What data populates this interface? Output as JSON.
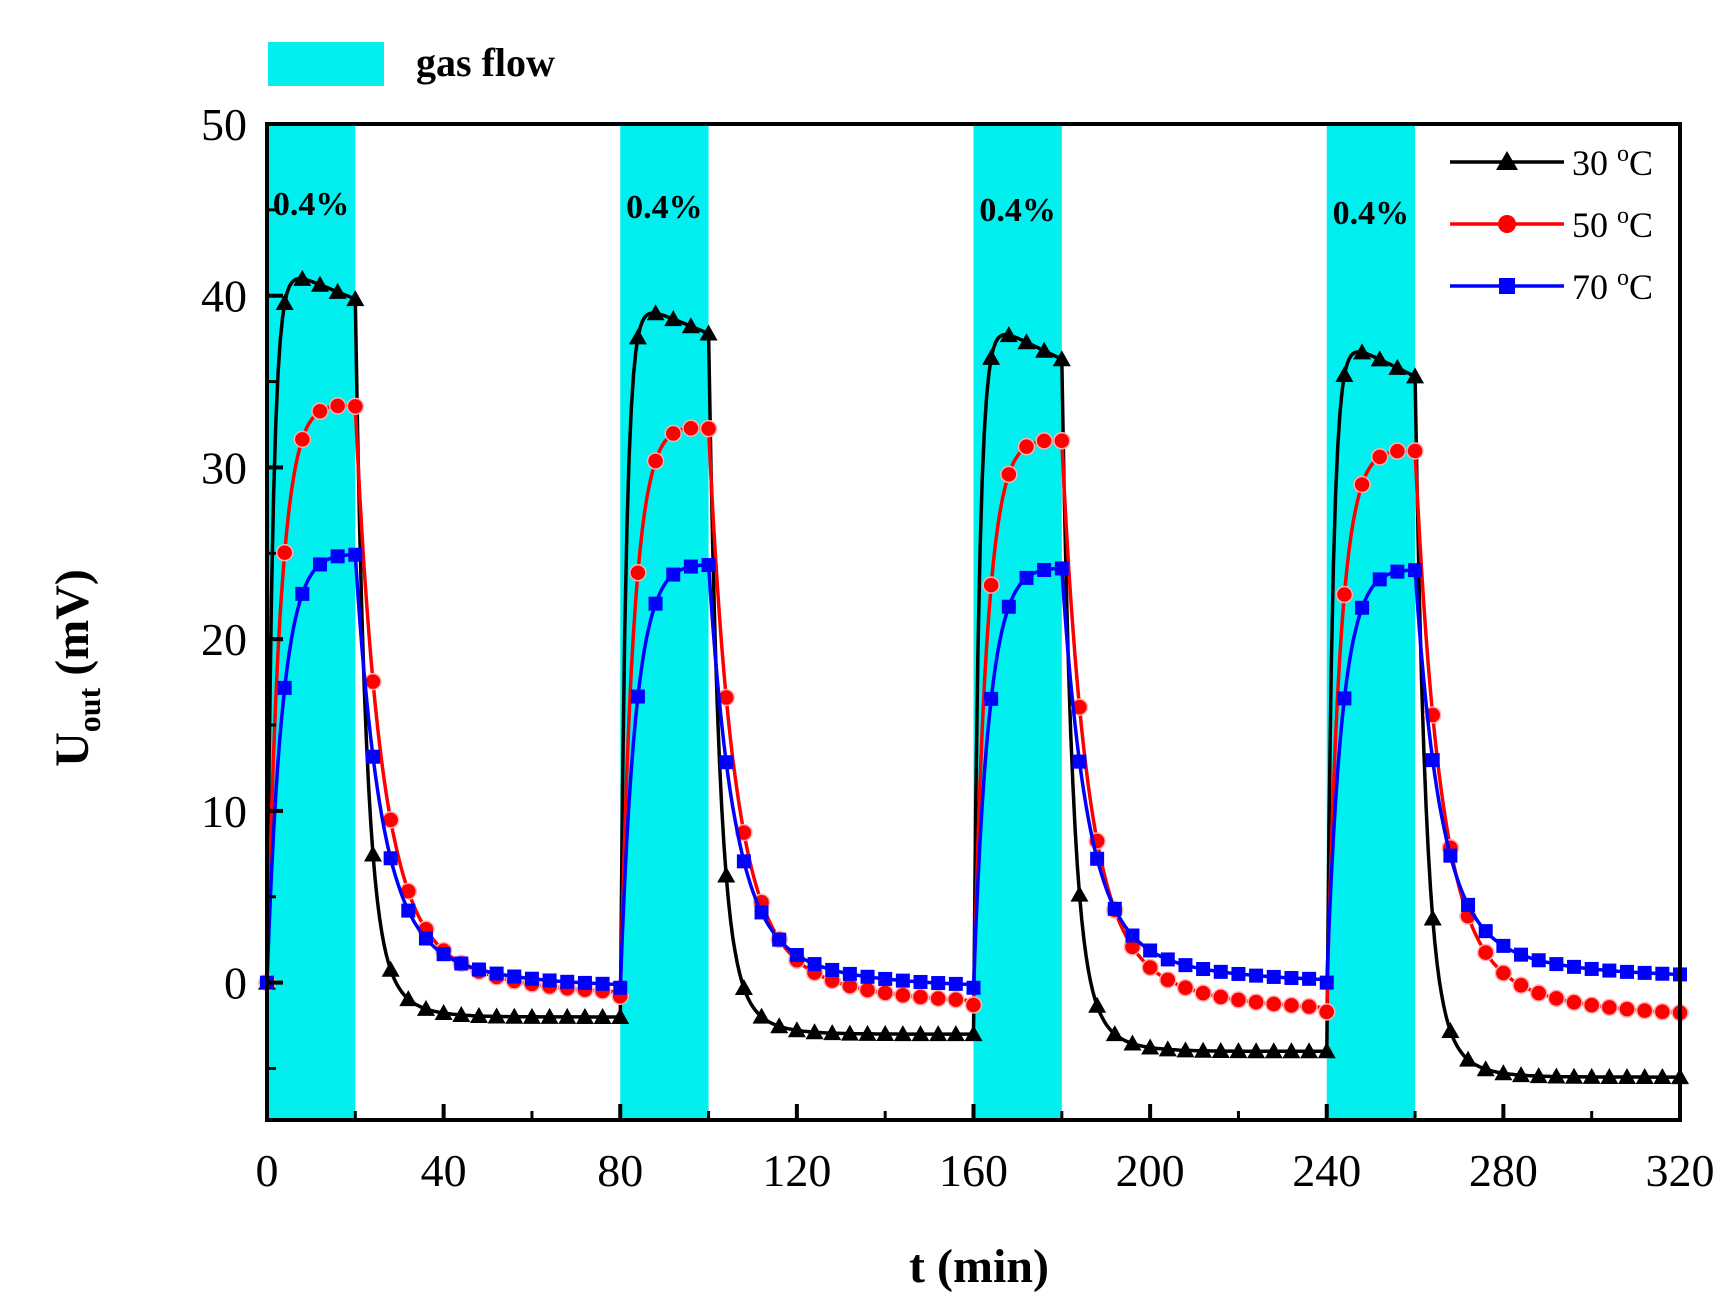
{
  "chart_data": {
    "type": "line",
    "title": "",
    "xlabel": "t (min)",
    "ylabel_main": "U",
    "ylabel_sub": "out",
    "ylabel_unit": " (mV)",
    "xlim": [
      0,
      320
    ],
    "ylim": [
      -8,
      50
    ],
    "xticks": [
      0,
      40,
      80,
      120,
      160,
      200,
      240,
      280,
      320
    ],
    "yticks": [
      0,
      10,
      20,
      30,
      40,
      50
    ],
    "gas_flow_legend": {
      "label": "gas flow",
      "color": "#00f0f0"
    },
    "gas_flow_periods": [
      {
        "start": 0,
        "end": 20,
        "label": "0.4%"
      },
      {
        "start": 80,
        "end": 100,
        "label": "0.4%"
      },
      {
        "start": 160,
        "end": 180,
        "label": "0.4%"
      },
      {
        "start": 240,
        "end": 260,
        "label": "0.4%"
      }
    ],
    "series": [
      {
        "name": "30 °C",
        "legend_num": "30 ",
        "legend_deg": "o",
        "legend_unit": "C",
        "color": "#000000",
        "marker": "triangle",
        "base": [
          0,
          -2,
          -3,
          -4,
          -5.5
        ],
        "peak": [
          41.5,
          39.5,
          38.3,
          37.3
        ],
        "end": [
          39.8,
          37.8,
          36.3,
          35.3
        ],
        "rise_tau": 1.3,
        "decay_tau": 2.3,
        "tail_tau": 6
      },
      {
        "name": "50 °C",
        "legend_num": "50 ",
        "legend_deg": "o",
        "legend_unit": "C",
        "color": "#ff0000",
        "marker": "circle",
        "base": [
          0,
          -0.8,
          -1.3,
          -1.7,
          -2
        ],
        "peak": [
          34,
          32.7,
          31.9,
          31.3
        ],
        "end": [
          33.6,
          32.3,
          31.6,
          31.0
        ],
        "rise_tau": 3.0,
        "decay_tau": 5.5,
        "tail_tau": 20
      },
      {
        "name": "70 °C",
        "legend_num": "70 ",
        "legend_deg": "o",
        "legend_unit": "C",
        "color": "#0000ff",
        "marker": "square",
        "base": [
          0,
          -0.3,
          -0.3,
          0,
          0.3
        ],
        "peak": [
          25.2,
          24.6,
          24.4,
          24.3
        ],
        "end": [
          25.0,
          24.4,
          24.2,
          24.1
        ],
        "rise_tau": 3.5,
        "decay_tau": 5.5,
        "tail_tau": 20
      }
    ]
  }
}
